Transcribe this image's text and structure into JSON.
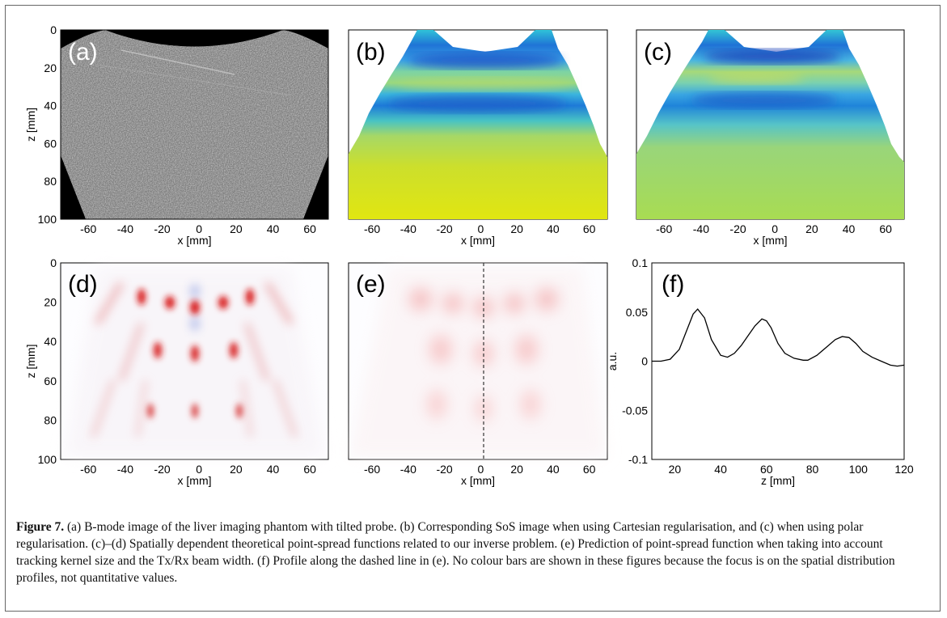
{
  "figure": {
    "panels": [
      {
        "id": "a",
        "label": "(a)",
        "xlabel": "x [mm]",
        "ylabel": "z [mm]",
        "xticks": [
          "-60",
          "-40",
          "-20",
          "0",
          "20",
          "40",
          "60"
        ],
        "yticks": [
          "0",
          "20",
          "40",
          "60",
          "80",
          "100"
        ]
      },
      {
        "id": "b",
        "label": "(b)",
        "xlabel": "x [mm]",
        "xticks": [
          "-60",
          "-40",
          "-20",
          "0",
          "20",
          "40",
          "60"
        ]
      },
      {
        "id": "c",
        "label": "(c)",
        "xlabel": "x [mm]",
        "xticks": [
          "-60",
          "-40",
          "-20",
          "0",
          "20",
          "40",
          "60"
        ]
      },
      {
        "id": "d",
        "label": "(d)",
        "xlabel": "x [mm]",
        "ylabel": "z [mm]",
        "xticks": [
          "-60",
          "-40",
          "-20",
          "0",
          "20",
          "40",
          "60"
        ],
        "yticks": [
          "0",
          "20",
          "40",
          "60",
          "80",
          "100"
        ]
      },
      {
        "id": "e",
        "label": "(e)",
        "xlabel": "x [mm]",
        "xticks": [
          "-60",
          "-40",
          "-20",
          "0",
          "20",
          "40",
          "60"
        ]
      },
      {
        "id": "f",
        "label": "(f)",
        "xlabel": "z [mm]",
        "ylabel": "a.u.",
        "xticks": [
          "20",
          "40",
          "60",
          "80",
          "100",
          "120"
        ],
        "yticks": [
          "0.1",
          "0.05",
          "0",
          "-0.05",
          "-0.1"
        ]
      }
    ],
    "caption": {
      "label": "Figure 7.",
      "text": " (a) B-mode image of the liver imaging phantom with tilted probe. (b) Corresponding SoS image when using Cartesian regularisation, and (c) when using polar regularisation. (c)–(d) Spatially dependent theoretical point-spread functions related to our inverse problem. (e) Prediction of point-spread function when taking into account tracking kernel size and the Tx/Rx beam width. (f) Profile along the dashed line in (e). No colour bars are shown in these figures because the focus is on the spatial distribution profiles, not quantitative values."
    }
  },
  "chart_data": {
    "type": "line",
    "title": "",
    "xlabel": "z [mm]",
    "ylabel": "a.u.",
    "xlim": [
      10,
      120
    ],
    "ylim": [
      -0.1,
      0.1
    ],
    "grid": false,
    "series": [
      {
        "x": [
          10,
          14,
          18,
          22,
          25,
          28,
          30,
          33,
          36,
          40,
          43,
          46,
          49,
          52,
          55,
          58,
          60,
          62,
          65,
          68,
          72,
          76,
          78,
          82,
          86,
          90,
          93,
          96,
          99,
          102,
          106,
          110,
          114,
          117,
          120
        ],
        "y": [
          0,
          0,
          0.002,
          0.012,
          0.03,
          0.048,
          0.053,
          0.044,
          0.022,
          0.006,
          0.004,
          0.008,
          0.016,
          0.026,
          0.036,
          0.043,
          0.041,
          0.034,
          0.018,
          0.008,
          0.003,
          0.001,
          0.001,
          0.006,
          0.014,
          0.022,
          0.025,
          0.024,
          0.018,
          0.01,
          0.004,
          0.0,
          -0.004,
          -0.005,
          -0.004
        ]
      }
    ]
  }
}
